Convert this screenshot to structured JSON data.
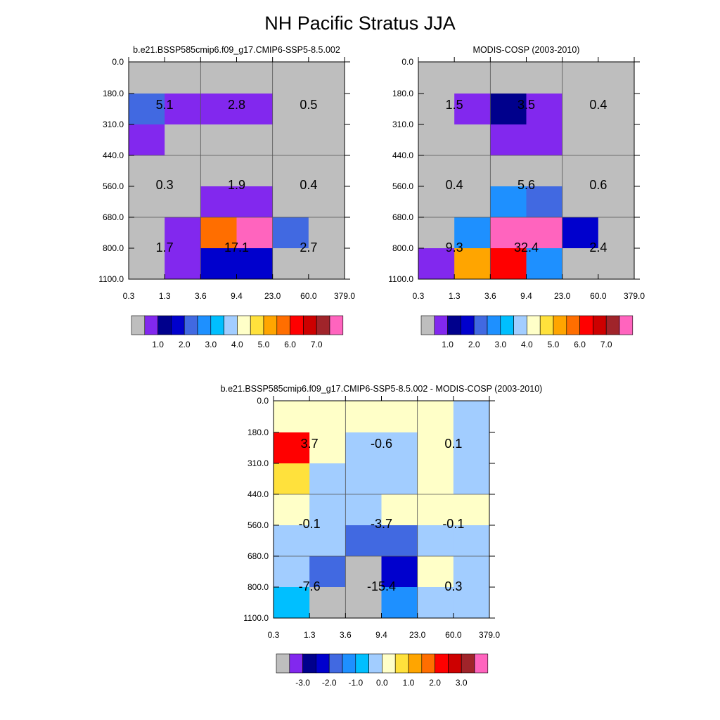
{
  "page_title": "NH Pacific Stratus JJA",
  "colors": {
    "grey": "#bebebe",
    "purple": "#8228ee",
    "navy": "#00008c",
    "blue": "#0000cd",
    "royal": "#4169e1",
    "dodger": "#1e90ff",
    "deepsky": "#00bfff",
    "lightblue": "#a2cdff",
    "lightyellow": "#ffffc8",
    "gold": "#ffe13c",
    "orange": "#ffa500",
    "darkorange": "#ff6e00",
    "red": "#ff0000",
    "red2": "#cd0000",
    "darkred": "#a0242a",
    "pink": "#ff64be"
  },
  "chart_data": [
    {
      "type": "heatmap",
      "id": "model",
      "title": "b.e21.BSSP585cmip6.f09_g17.CMIP6-SSP5-8.5.002",
      "x_tick_labels": [
        "0.3",
        "1.3",
        "3.6",
        "9.4",
        "23.0",
        "60.0",
        "379.0"
      ],
      "y_tick_labels": [
        "0.0",
        "180.0",
        "310.0",
        "440.0",
        "560.0",
        "680.0",
        "800.0",
        "1100.0"
      ],
      "cell_colors": [
        [
          "grey",
          "grey",
          "grey",
          "grey",
          "grey",
          "grey"
        ],
        [
          "royal",
          "purple",
          "purple",
          "purple",
          "grey",
          "grey"
        ],
        [
          "purple",
          "grey",
          "grey",
          "grey",
          "grey",
          "grey"
        ],
        [
          "grey",
          "grey",
          "grey",
          "grey",
          "grey",
          "grey"
        ],
        [
          "grey",
          "grey",
          "purple",
          "purple",
          "grey",
          "grey"
        ],
        [
          "grey",
          "purple",
          "darkorange",
          "pink",
          "royal",
          "grey"
        ],
        [
          "grey",
          "purple",
          "blue",
          "blue",
          "grey",
          "grey"
        ]
      ],
      "box_values": [
        [
          "5.1",
          "2.8",
          "0.5"
        ],
        [
          "0.3",
          "1.9",
          "0.4"
        ],
        [
          "1.7",
          "17.1",
          "2.7"
        ]
      ],
      "colorbar": {
        "colors": [
          "grey",
          "purple",
          "navy",
          "blue",
          "royal",
          "dodger",
          "deepsky",
          "lightblue",
          "lightyellow",
          "gold",
          "orange",
          "darkorange",
          "red",
          "red2",
          "darkred",
          "pink"
        ],
        "labels": [
          "1.0",
          "2.0",
          "3.0",
          "4.0",
          "5.0",
          "6.0",
          "7.0"
        ]
      }
    },
    {
      "type": "heatmap",
      "id": "obs",
      "title": "MODIS-COSP (2003-2010)",
      "x_tick_labels": [
        "0.3",
        "1.3",
        "3.6",
        "9.4",
        "23.0",
        "60.0",
        "379.0"
      ],
      "y_tick_labels": [
        "0.0",
        "180.0",
        "310.0",
        "440.0",
        "560.0",
        "680.0",
        "800.0",
        "1100.0"
      ],
      "cell_colors": [
        [
          "grey",
          "grey",
          "grey",
          "grey",
          "grey",
          "grey"
        ],
        [
          "grey",
          "purple",
          "navy",
          "purple",
          "grey",
          "grey"
        ],
        [
          "grey",
          "grey",
          "purple",
          "purple",
          "grey",
          "grey"
        ],
        [
          "grey",
          "grey",
          "grey",
          "grey",
          "grey",
          "grey"
        ],
        [
          "grey",
          "grey",
          "dodger",
          "royal",
          "grey",
          "grey"
        ],
        [
          "grey",
          "dodger",
          "pink",
          "pink",
          "blue",
          "grey"
        ],
        [
          "purple",
          "orange",
          "red",
          "dodger",
          "grey",
          "grey"
        ]
      ],
      "box_values": [
        [
          "1.5",
          "3.5",
          "0.4"
        ],
        [
          "0.4",
          "5.6",
          "0.6"
        ],
        [
          "9.3",
          "32.4",
          "2.4"
        ]
      ],
      "colorbar": {
        "colors": [
          "grey",
          "purple",
          "navy",
          "blue",
          "royal",
          "dodger",
          "deepsky",
          "lightblue",
          "lightyellow",
          "gold",
          "orange",
          "darkorange",
          "red",
          "red2",
          "darkred",
          "pink"
        ],
        "labels": [
          "1.0",
          "2.0",
          "3.0",
          "4.0",
          "5.0",
          "6.0",
          "7.0"
        ]
      }
    },
    {
      "type": "heatmap",
      "id": "diff",
      "title": "b.e21.BSSP585cmip6.f09_g17.CMIP6-SSP5-8.5.002 - MODIS-COSP (2003-2010)",
      "x_tick_labels": [
        "0.3",
        "1.3",
        "3.6",
        "9.4",
        "23.0",
        "60.0",
        "379.0"
      ],
      "y_tick_labels": [
        "0.0",
        "180.0",
        "310.0",
        "440.0",
        "560.0",
        "680.0",
        "800.0",
        "1100.0"
      ],
      "cell_colors": [
        [
          "lightyellow",
          "lightyellow",
          "lightyellow",
          "lightyellow",
          "lightyellow",
          "lightblue"
        ],
        [
          "red",
          "lightyellow",
          "lightblue",
          "lightblue",
          "lightyellow",
          "lightblue"
        ],
        [
          "gold",
          "lightblue",
          "lightblue",
          "lightblue",
          "lightyellow",
          "lightblue"
        ],
        [
          "lightyellow",
          "lightblue",
          "lightblue",
          "lightyellow",
          "lightyellow",
          "lightyellow"
        ],
        [
          "lightblue",
          "lightblue",
          "royal",
          "royal",
          "lightblue",
          "lightblue"
        ],
        [
          "lightblue",
          "royal",
          "grey",
          "blue",
          "lightyellow",
          "lightblue"
        ],
        [
          "deepsky",
          "grey",
          "grey",
          "dodger",
          "lightblue",
          "lightblue"
        ]
      ],
      "box_values": [
        [
          "3.7",
          "-0.6",
          "0.1"
        ],
        [
          "-0.1",
          "-3.7",
          "-0.1"
        ],
        [
          "-7.6",
          "-15.4",
          "0.3"
        ]
      ],
      "colorbar": {
        "colors": [
          "grey",
          "purple",
          "navy",
          "blue",
          "royal",
          "dodger",
          "deepsky",
          "lightblue",
          "lightyellow",
          "gold",
          "orange",
          "darkorange",
          "red",
          "red2",
          "darkred",
          "pink"
        ],
        "labels": [
          "-3.0",
          "-2.0",
          "-1.0",
          "0.0",
          "1.0",
          "2.0",
          "3.0"
        ]
      }
    }
  ]
}
